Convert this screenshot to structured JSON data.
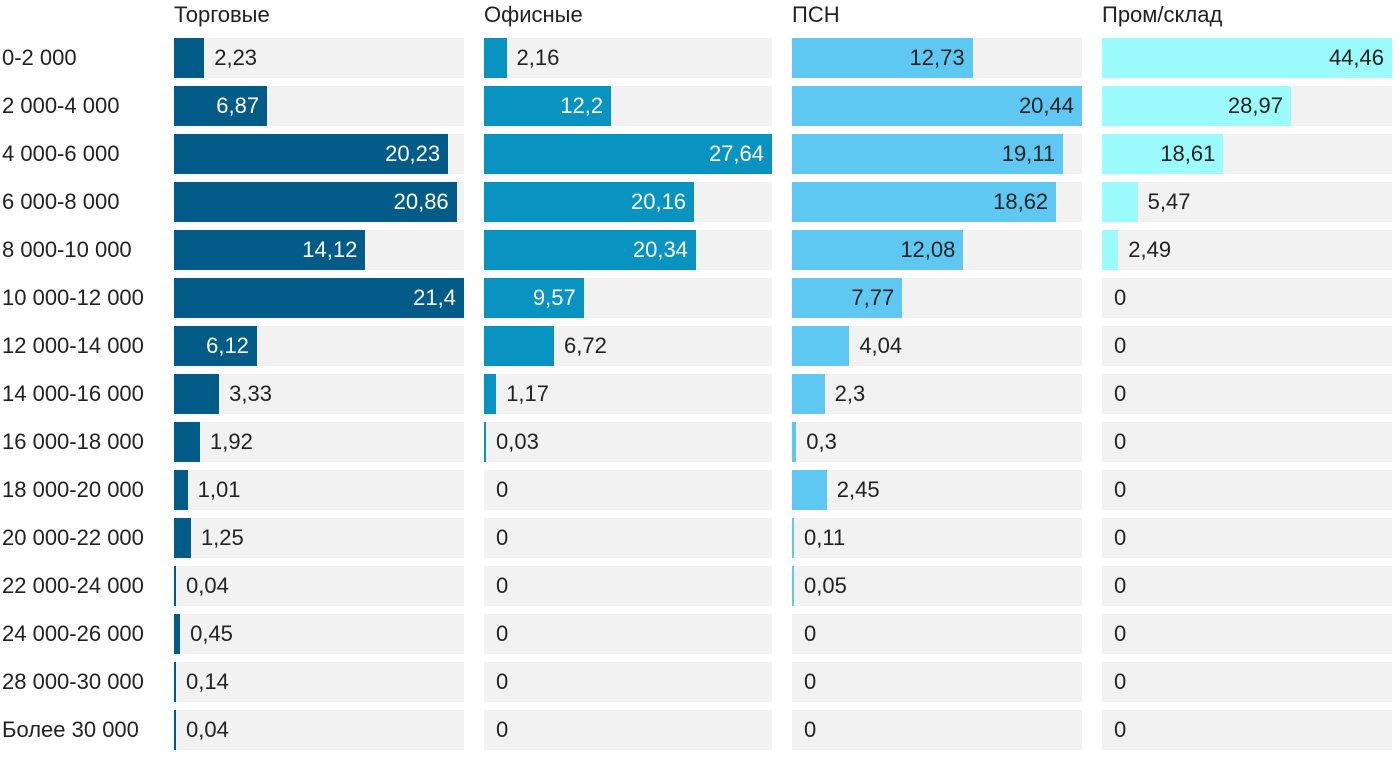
{
  "chart_data": {
    "type": "bar",
    "orientation": "horizontal",
    "categories": [
      "0-2 000",
      "2 000-4 000",
      "4 000-6 000",
      "6 000-8 000",
      "8 000-10 000",
      "10 000-12 000",
      "12 000-14 000",
      "14 000-16 000",
      "16 000-18 000",
      "18 000-20 000",
      "20 000-22 000",
      "22 000-24 000",
      "24 000-26 000",
      "28 000-30 000",
      "Более 30 000"
    ],
    "series": [
      {
        "name": "Торговые",
        "color": "#035c87",
        "label_color_inside": "#ffffff",
        "values": [
          2.23,
          6.87,
          20.23,
          20.86,
          14.12,
          21.4,
          6.12,
          3.33,
          1.92,
          1.01,
          1.25,
          0.04,
          0.45,
          0.14,
          0.04
        ],
        "labels": [
          "2,23",
          "6,87",
          "20,23",
          "20,86",
          "14,12",
          "21,4",
          "6,12",
          "3,33",
          "1,92",
          "1,01",
          "1,25",
          "0,04",
          "0,45",
          "0,14",
          "0,04"
        ],
        "max": 21.4
      },
      {
        "name": "Офисные",
        "color": "#0993c1",
        "label_color_inside": "#ffffff",
        "values": [
          2.16,
          12.2,
          27.64,
          20.16,
          20.34,
          9.57,
          6.72,
          1.17,
          0.03,
          0,
          0,
          0,
          0,
          0,
          0
        ],
        "labels": [
          "2,16",
          "12,2",
          "27,64",
          "20,16",
          "20,34",
          "9,57",
          "6,72",
          "1,17",
          "0,03",
          "0",
          "0",
          "0",
          "0",
          "0",
          "0"
        ],
        "max": 27.64
      },
      {
        "name": "ПСН",
        "color": "#5ec8f2",
        "label_color_inside": "#222222",
        "values": [
          12.73,
          20.44,
          19.11,
          18.62,
          12.08,
          7.77,
          4.04,
          2.3,
          0.3,
          2.45,
          0.11,
          0.05,
          0,
          0,
          0
        ],
        "labels": [
          "12,73",
          "20,44",
          "19,11",
          "18,62",
          "12,08",
          "7,77",
          "4,04",
          "2,3",
          "0,3",
          "2,45",
          "0,11",
          "0,05",
          "0",
          "0",
          "0"
        ],
        "max": 20.44
      },
      {
        "name": "Пром/склад",
        "color": "#9cfbfd",
        "label_color_inside": "#222222",
        "values": [
          44.46,
          28.97,
          18.61,
          5.47,
          2.49,
          0,
          0,
          0,
          0,
          0,
          0,
          0,
          0,
          0,
          0
        ],
        "labels": [
          "44,46",
          "28,97",
          "18,61",
          "5,47",
          "2,49",
          "0",
          "0",
          "0",
          "0",
          "0",
          "0",
          "0",
          "0",
          "0",
          "0"
        ],
        "max": 44.46
      }
    ],
    "track_color": "#f2f2f2",
    "label_color_outside": "#222222",
    "grid": false,
    "legend": "none"
  }
}
